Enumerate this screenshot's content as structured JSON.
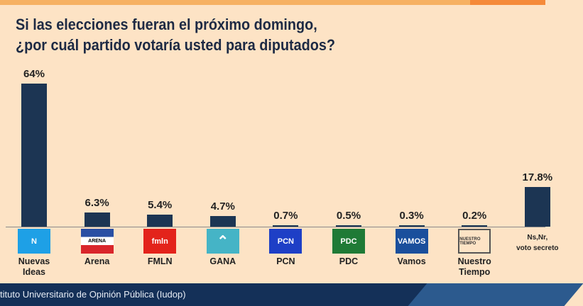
{
  "chart_data": {
    "type": "bar",
    "title": "Si las elecciones fueran el próximo domingo, ¿por cuál partido votaría usted para diputados?",
    "title_lines": [
      "Si las elecciones fueran el próximo domingo,",
      "¿por cuál partido votaría usted para diputados?"
    ],
    "categories": [
      "Nuevas Ideas",
      "Arena",
      "FMLN",
      "GANA",
      "PCN",
      "PDC",
      "Vamos",
      "Nuestro Tiempo",
      "Ns,Nr, voto secreto"
    ],
    "category_lines": [
      [
        "Nuevas",
        "Ideas"
      ],
      [
        "Arena"
      ],
      [
        "FMLN"
      ],
      [
        "GANA"
      ],
      [
        "PCN"
      ],
      [
        "PDC"
      ],
      [
        "Vamos"
      ],
      [
        "Nuestro",
        "Tiempo"
      ],
      [
        "Ns,Nr,",
        "voto secreto"
      ]
    ],
    "values": [
      64,
      6.3,
      5.4,
      4.7,
      0.7,
      0.5,
      0.3,
      0.2,
      17.8
    ],
    "data_labels": [
      "64%",
      "6.3%",
      "5.4%",
      "4.7%",
      "0.7%",
      "0.5%",
      "0.3%",
      "0.2%",
      "17.8%"
    ],
    "logos": [
      {
        "text": "N",
        "bg": "#1ea0e6"
      },
      {
        "text": "ARENA",
        "bg": "#ffffff"
      },
      {
        "text": "fmln",
        "bg": "#e3231b"
      },
      {
        "text": "",
        "bg": "#45b4c6"
      },
      {
        "text": "PCN",
        "bg": "#1e3fc6"
      },
      {
        "text": "PDC",
        "bg": "#1f7a36"
      },
      {
        "text": "VAMOS",
        "bg": "#1a4f9c"
      },
      {
        "text": "NUESTRO TIEMPO",
        "bg": "#fde3c5"
      }
    ],
    "ylim": [
      0,
      64
    ],
    "bar_color": "#1c3553",
    "xlabel": "",
    "ylabel": ""
  },
  "footer": {
    "source": "tituto Universitario de Opinión Pública (Iudop)"
  }
}
